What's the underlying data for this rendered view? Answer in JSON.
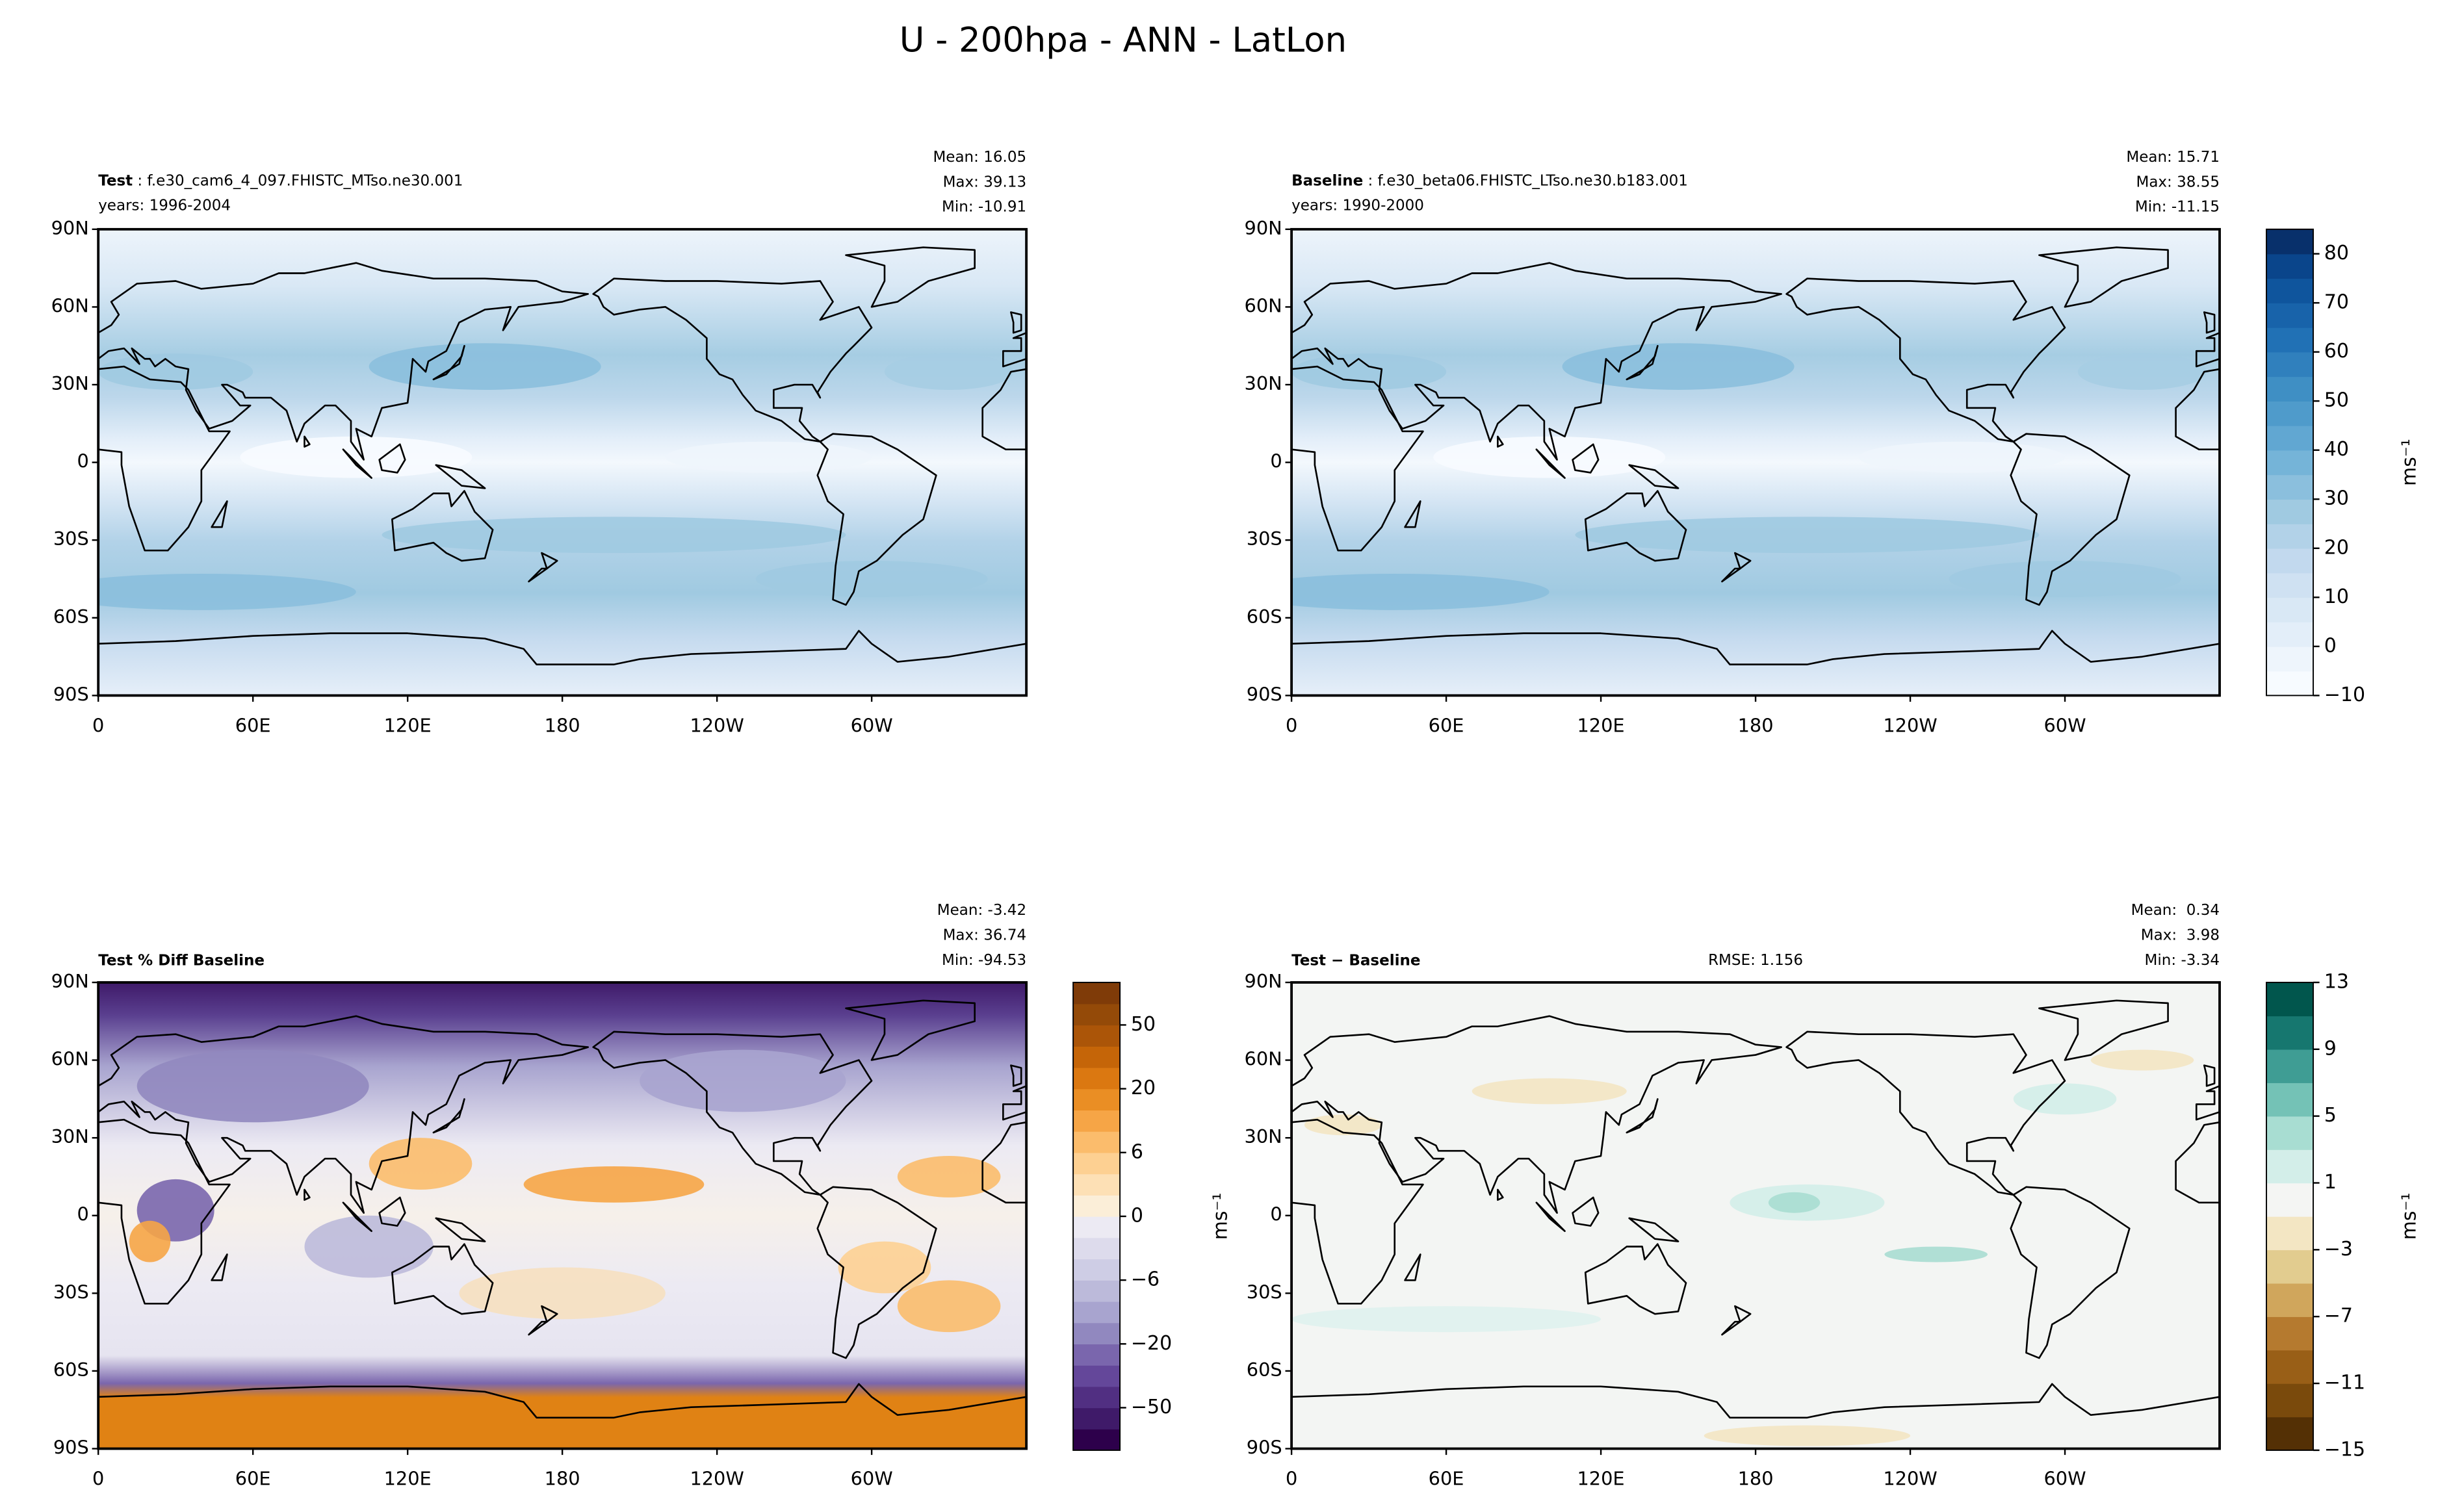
{
  "title": "U - 200hpa - ANN - LatLon",
  "chart_data": [
    {
      "type": "map",
      "title": "Test",
      "title_suffix": ": f.e30_cam6_4_097.FHISTC_MTso.ne30.001",
      "subtitle": "years: 1996-2004",
      "stats": [
        "Mean: 16.05",
        "Max: 39.13",
        "Min: -10.91"
      ],
      "xlim": [
        0,
        360
      ],
      "ylim": [
        -90,
        90
      ],
      "xticks": [
        0,
        {
          "value": 60,
          "label": "60E"
        },
        {
          "value": 120,
          "label": "120E"
        },
        180,
        {
          "value": 240,
          "label": "120W"
        },
        {
          "value": 300,
          "label": "60W"
        }
      ],
      "yticks": [
        {
          "value": 90,
          "label": "90N"
        },
        {
          "value": 60,
          "label": "60N"
        },
        {
          "value": 30,
          "label": "30N"
        },
        0,
        {
          "value": -30,
          "label": "30S"
        },
        {
          "value": -60,
          "label": "60S"
        },
        {
          "value": -90,
          "label": "90S"
        }
      ]
    },
    {
      "type": "map",
      "title": "Baseline",
      "title_suffix": ": f.e30_beta06.FHISTC_LTso.ne30.b183.001",
      "subtitle": "years: 1990-2000",
      "stats": [
        "Mean: 15.71",
        "Max: 38.55",
        "Min: -11.15"
      ],
      "xlim": [
        0,
        360
      ],
      "ylim": [
        -90,
        90
      ],
      "xticks": [
        0,
        {
          "value": 60,
          "label": "60E"
        },
        {
          "value": 120,
          "label": "120E"
        },
        180,
        {
          "value": 240,
          "label": "120W"
        },
        {
          "value": 300,
          "label": "60W"
        }
      ],
      "yticks": [
        {
          "value": 90,
          "label": "90N"
        },
        {
          "value": 60,
          "label": "60N"
        },
        {
          "value": 30,
          "label": "30N"
        },
        0,
        {
          "value": -30,
          "label": "30S"
        },
        {
          "value": -60,
          "label": "60S"
        },
        {
          "value": -90,
          "label": "90S"
        }
      ],
      "colorbar": {
        "label": "ms⁻¹",
        "levels": [
          -10,
          -5,
          0,
          5,
          10,
          15,
          20,
          25,
          30,
          35,
          40,
          45,
          50,
          55,
          60,
          65,
          70,
          75,
          80,
          85
        ],
        "colors": [
          "#f7fbff",
          "#eef5fc",
          "#e3eef9",
          "#d9e8f5",
          "#cfe1f2",
          "#c2d9ee",
          "#b2d2e8",
          "#a0cae1",
          "#8bbfdd",
          "#75b4d8",
          "#61a7d2",
          "#4f9bcb",
          "#3f8fc4",
          "#3080bd",
          "#2171b5",
          "#1863aa",
          "#0f559d",
          "#0a458b",
          "#08306b"
        ],
        "ticks": [
          {
            "value": -10,
            "label": "−10"
          },
          0,
          10,
          20,
          30,
          40,
          50,
          60,
          70,
          80
        ]
      }
    },
    {
      "type": "map",
      "title": "Test % Diff Baseline",
      "stats": [
        "Mean: -3.42",
        "Max: 36.74",
        "Min: -94.53"
      ],
      "xlim": [
        0,
        360
      ],
      "ylim": [
        -90,
        90
      ],
      "xticks": [
        0,
        {
          "value": 60,
          "label": "60E"
        },
        {
          "value": 120,
          "label": "120E"
        },
        180,
        {
          "value": 240,
          "label": "120W"
        },
        {
          "value": 300,
          "label": "60W"
        }
      ],
      "yticks": [
        {
          "value": 90,
          "label": "90N"
        },
        {
          "value": 60,
          "label": "60N"
        },
        {
          "value": 30,
          "label": "30N"
        },
        0,
        {
          "value": -30,
          "label": "30S"
        },
        {
          "value": -60,
          "label": "60S"
        },
        {
          "value": -90,
          "label": "90S"
        }
      ],
      "colorbar": {
        "label": "ms⁻¹",
        "levels": [
          -100,
          -75,
          -50,
          -40,
          -30,
          -20,
          -15,
          -10,
          -6,
          -4,
          -2,
          0,
          2,
          4,
          6,
          10,
          15,
          20,
          30,
          40,
          50,
          75,
          100
        ],
        "colors": [
          "#2d004b",
          "#3f1a69",
          "#512f82",
          "#64479a",
          "#7a66ad",
          "#9188bf",
          "#a8a4cf",
          "#bcbada",
          "#cecde5",
          "#dddbec",
          "#eceaf3",
          "#fbeed8",
          "#fde0b5",
          "#fdd092",
          "#fbbc6c",
          "#f6a546",
          "#ea8e24",
          "#db7811",
          "#c56508",
          "#ab5508",
          "#944a08",
          "#7f3b08"
        ],
        "ticks": [
          50,
          20,
          6,
          0,
          {
            "value": -6,
            "label": "−6"
          },
          {
            "value": -20,
            "label": "−20"
          },
          {
            "value": -50,
            "label": "−50"
          }
        ]
      }
    },
    {
      "type": "map",
      "title": "Test − Baseline",
      "rmse": "RMSE: 1.156",
      "stats": [
        "Mean:  0.34",
        "Max:  3.98",
        "Min: -3.34"
      ],
      "xlim": [
        0,
        360
      ],
      "ylim": [
        -90,
        90
      ],
      "xticks": [
        0,
        {
          "value": 60,
          "label": "60E"
        },
        {
          "value": 120,
          "label": "120E"
        },
        180,
        {
          "value": 240,
          "label": "120W"
        },
        {
          "value": 300,
          "label": "60W"
        }
      ],
      "yticks": [
        {
          "value": 90,
          "label": "90N"
        },
        {
          "value": 60,
          "label": "60N"
        },
        {
          "value": 30,
          "label": "30N"
        },
        0,
        {
          "value": -30,
          "label": "30S"
        },
        {
          "value": -60,
          "label": "60S"
        },
        {
          "value": -90,
          "label": "90S"
        }
      ],
      "colorbar": {
        "label": "ms⁻¹",
        "levels": [
          -15,
          -13,
          -11,
          -9,
          -7,
          -5,
          -3,
          -1,
          1,
          3,
          5,
          7,
          9,
          11,
          13
        ],
        "colors": [
          "#543005",
          "#7a4a0c",
          "#995f17",
          "#b57a2f",
          "#d0a65c",
          "#e2cc8f",
          "#f3e6c3",
          "#f4f5f3",
          "#d3eee9",
          "#a8ddd2",
          "#74c2b6",
          "#3f9d94",
          "#16776f",
          "#01564d"
        ],
        "ticks": [
          13,
          9,
          5,
          1,
          {
            "value": -3,
            "label": "−3"
          },
          {
            "value": -7,
            "label": "−7"
          },
          {
            "value": -11,
            "label": "−11"
          },
          {
            "value": -15,
            "label": "−15"
          }
        ]
      }
    }
  ]
}
